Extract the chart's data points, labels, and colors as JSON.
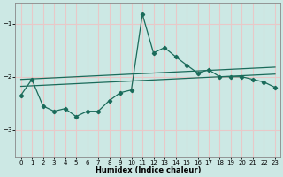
{
  "xlabel": "Humidex (Indice chaleur)",
  "bg_color": "#cce8e4",
  "grid_color": "#e8c8c8",
  "line_color": "#1a6b5a",
  "xlim": [
    -0.5,
    23.5
  ],
  "ylim": [
    -3.5,
    -0.6
  ],
  "yticks": [
    -3,
    -2,
    -1
  ],
  "xticks": [
    0,
    1,
    2,
    3,
    4,
    5,
    6,
    7,
    8,
    9,
    10,
    11,
    12,
    13,
    14,
    15,
    16,
    17,
    18,
    19,
    20,
    21,
    22,
    23
  ],
  "main_line_x": [
    0,
    1,
    2,
    3,
    4,
    5,
    6,
    7,
    8,
    9,
    10,
    11,
    12,
    13,
    14,
    15,
    16,
    17,
    18,
    19,
    20,
    21,
    22,
    23
  ],
  "main_line_y": [
    -2.35,
    -2.05,
    -2.55,
    -2.65,
    -2.6,
    -2.75,
    -2.65,
    -2.65,
    -2.45,
    -2.3,
    -2.25,
    -0.82,
    -1.55,
    -1.45,
    -1.62,
    -1.78,
    -1.93,
    -1.87,
    -2.0,
    -2.0,
    -2.0,
    -2.05,
    -2.1,
    -2.2
  ],
  "upper_line_x": [
    0,
    23
  ],
  "upper_line_y": [
    -2.05,
    -1.82
  ],
  "lower_line_x": [
    0,
    23
  ],
  "lower_line_y": [
    -2.18,
    -1.95
  ]
}
